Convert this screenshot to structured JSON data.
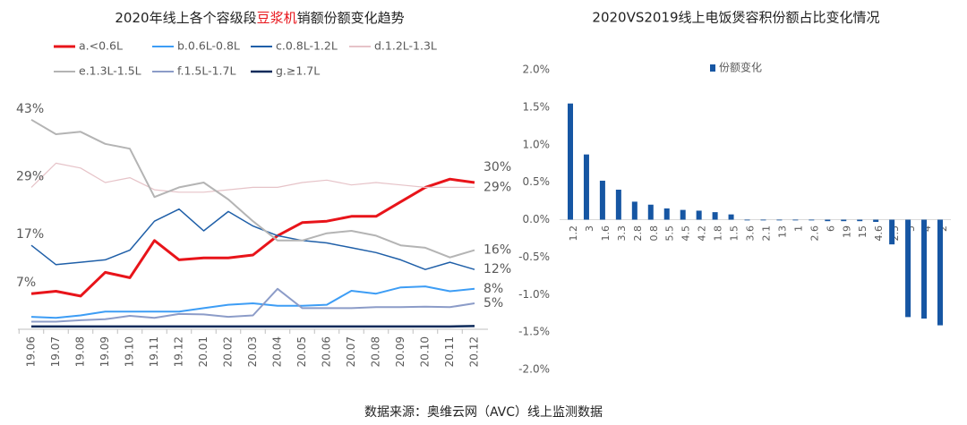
{
  "chart_data": [
    {
      "type": "line",
      "title": "2020年线上各个容级段豆浆机销额份额变化趋势",
      "title_highlight": "豆浆机",
      "highlight_color": "#e8141a",
      "categories": [
        "19.06",
        "19.07",
        "19.08",
        "19.09",
        "19.10",
        "19.11",
        "19.12",
        "20.01",
        "20.02",
        "20.03",
        "20.04",
        "20.05",
        "20.06",
        "20.07",
        "20.08",
        "20.09",
        "20.10",
        "20.11",
        "20.12"
      ],
      "series": [
        {
          "name": "a.<0.6L",
          "color": "#e8141a",
          "width": 3,
          "values": [
            7,
            7.5,
            6.5,
            11.4,
            10.3,
            18,
            14,
            14.4,
            14.4,
            15,
            19,
            21.7,
            22,
            23,
            23,
            26,
            29,
            30.7,
            30
          ],
          "value_labels": [
            "7%",
            null,
            null,
            null,
            null,
            null,
            null,
            null,
            null,
            null,
            null,
            null,
            null,
            null,
            null,
            null,
            null,
            null,
            "30%"
          ]
        },
        {
          "name": "b.0.6L-0.8L",
          "color": "#3d9df5",
          "width": 2,
          "values": [
            2.2,
            2,
            2.5,
            3.3,
            3.3,
            3.3,
            3.3,
            4,
            4.7,
            5,
            4.5,
            4.5,
            4.7,
            7.6,
            7,
            8.3,
            8.5,
            7.5,
            8
          ],
          "value_labels": [
            null,
            null,
            null,
            null,
            null,
            null,
            null,
            null,
            null,
            null,
            null,
            null,
            null,
            null,
            null,
            null,
            null,
            null,
            "8%"
          ]
        },
        {
          "name": "c.0.8L-1.2L",
          "color": "#1f5fa8",
          "width": 1.5,
          "values": [
            17,
            13,
            13.5,
            14,
            16,
            22,
            24.5,
            20,
            24,
            21,
            19,
            18,
            17.5,
            16.5,
            15.5,
            14,
            12,
            13.5,
            12
          ],
          "value_labels": [
            "17%",
            null,
            null,
            null,
            null,
            null,
            null,
            null,
            null,
            null,
            null,
            null,
            null,
            null,
            null,
            null,
            null,
            null,
            "12%"
          ]
        },
        {
          "name": "d.1.2L-1.3L",
          "color": "#e6c3c8",
          "width": 1.2,
          "values": [
            29,
            34,
            33,
            30,
            31,
            28.5,
            28,
            28,
            28.5,
            29,
            29,
            30,
            30.5,
            29.5,
            30,
            29.5,
            29,
            29,
            29
          ],
          "value_labels": [
            "29%",
            null,
            null,
            null,
            null,
            null,
            null,
            null,
            null,
            null,
            null,
            null,
            null,
            null,
            null,
            null,
            null,
            null,
            "29%"
          ]
        },
        {
          "name": "e.1.3L-1.5L",
          "color": "#b4b4b4",
          "width": 2,
          "values": [
            43,
            40,
            40.5,
            38,
            37,
            27,
            29,
            30,
            26.5,
            22,
            18,
            18,
            19.5,
            20,
            19,
            17,
            16.5,
            14.5,
            16
          ],
          "value_labels": [
            "43%",
            null,
            null,
            null,
            null,
            null,
            null,
            null,
            null,
            null,
            null,
            null,
            null,
            null,
            null,
            null,
            null,
            null,
            "16%"
          ]
        },
        {
          "name": "f.1.5L-1.7L",
          "color": "#8c9cc8",
          "width": 2,
          "values": [
            1.2,
            1.2,
            1.5,
            1.7,
            2.4,
            2,
            2.8,
            2.7,
            2.2,
            2.5,
            8,
            4,
            4,
            4,
            4.2,
            4.2,
            4.3,
            4.2,
            5
          ],
          "value_labels": [
            null,
            null,
            null,
            null,
            null,
            null,
            null,
            null,
            null,
            null,
            null,
            null,
            null,
            null,
            null,
            null,
            null,
            null,
            "5%"
          ]
        },
        {
          "name": "g.≥1.7L",
          "color": "#0d2a5a",
          "width": 2.5,
          "values": [
            0.2,
            0.2,
            0.2,
            0.2,
            0.2,
            0.2,
            0.2,
            0.2,
            0.2,
            0.2,
            0.2,
            0.2,
            0.2,
            0.2,
            0.2,
            0.2,
            0.2,
            0.2,
            0.3
          ],
          "value_labels": [
            null,
            null,
            null,
            null,
            null,
            null,
            null,
            null,
            null,
            null,
            null,
            null,
            null,
            null,
            null,
            null,
            null,
            null,
            null
          ]
        }
      ]
    },
    {
      "type": "bar",
      "title": "2020VS2019线上电饭煲容积份额占比变化情况",
      "series": [
        {
          "name": "份额变化",
          "color": "#1656a3",
          "values": [
            1.55,
            0.87,
            0.52,
            0.4,
            0.24,
            0.2,
            0.15,
            0.13,
            0.12,
            0.1,
            0.07,
            -0.01,
            -0.01,
            -0.01,
            -0.01,
            -0.01,
            -0.02,
            -0.02,
            -0.02,
            -0.03,
            -0.33,
            -1.3,
            -1.32,
            -1.41
          ]
        }
      ],
      "categories": [
        "1.2",
        "3",
        "1.6",
        "3.3",
        "2.8",
        "0.8",
        "5.5",
        "4.5",
        "4.2",
        "1.8",
        "1.5",
        "3.6",
        "2.1",
        "13",
        "1",
        "2.6",
        "6",
        "19",
        "15",
        "4.6",
        "2.5",
        "5",
        "4",
        "2"
      ],
      "ylim": [
        -2,
        2
      ],
      "yticks": [
        {
          "value": 2,
          "label": "2.0%"
        },
        {
          "value": 1.5,
          "label": "1.5%"
        },
        {
          "value": 1,
          "label": "1.0%"
        },
        {
          "value": 0.5,
          "label": "0.5%"
        },
        {
          "value": 0,
          "label": "0.0%"
        },
        {
          "value": -0.5,
          "label": "-0.5%"
        },
        {
          "value": -1,
          "label": "-1.0%"
        },
        {
          "value": -1.5,
          "label": "-1.5%"
        },
        {
          "value": -2,
          "label": "-2.0%"
        }
      ]
    }
  ],
  "source": "数据来源：奥维云网（AVC）线上监测数据"
}
